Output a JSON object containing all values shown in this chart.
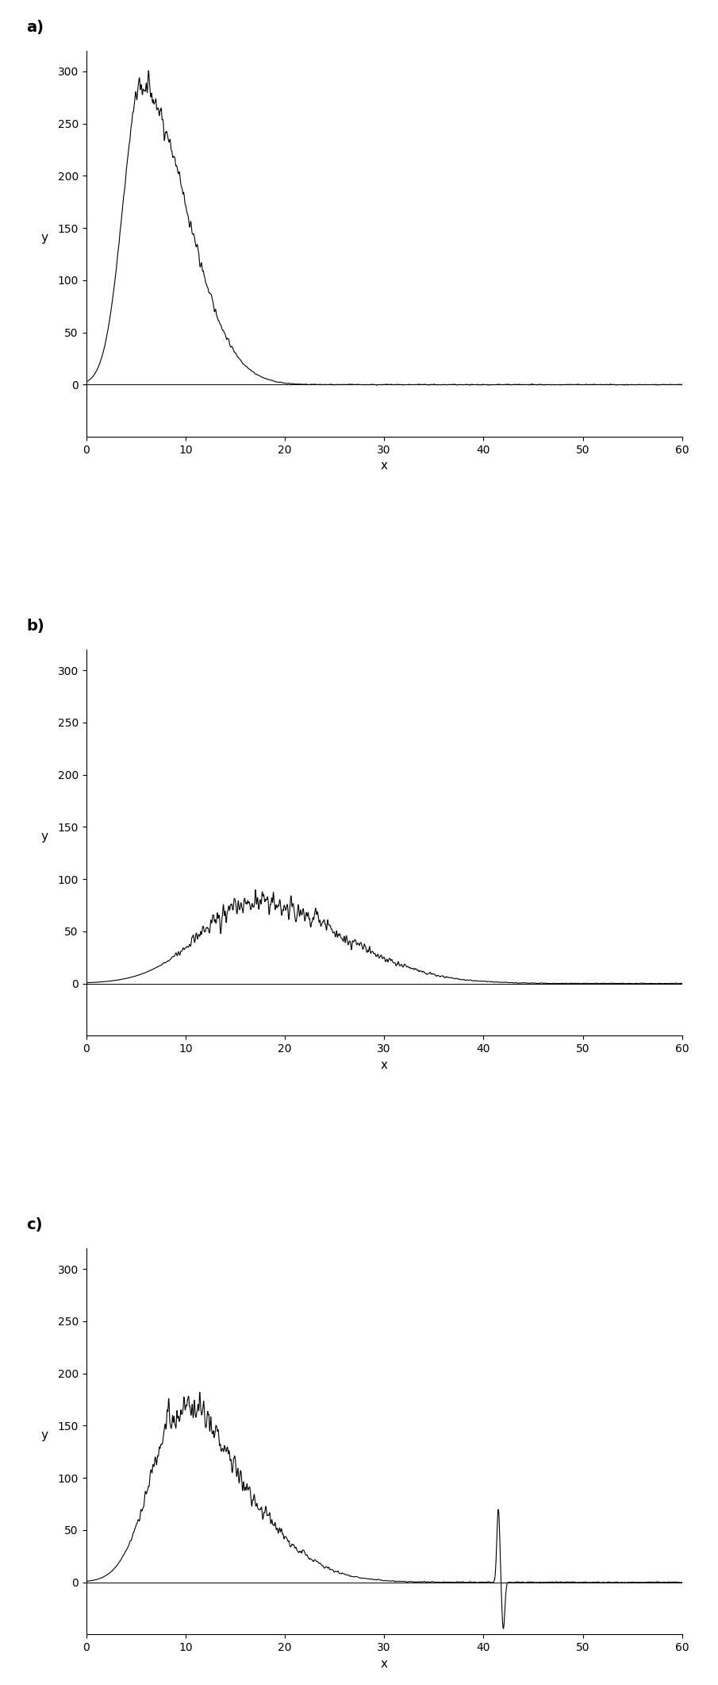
{
  "fig_width": 9.05,
  "fig_height": 21.22,
  "dpi": 100,
  "background_color": "#ffffff",
  "line_color": "#000000",
  "line_width": 0.8,
  "subplots": [
    {
      "label": "a)",
      "xlim": [
        0,
        60
      ],
      "ylim": [
        -50,
        320
      ],
      "xticks": [
        0,
        10,
        20,
        30,
        40,
        50,
        60
      ],
      "yticks": [
        0,
        50,
        100,
        150,
        200,
        250,
        300
      ],
      "xlabel": "x",
      "ylabel": "y",
      "peak_x": 5.5,
      "peak_y": 285,
      "rise_sigma": 1.8,
      "decay_sigma": 4.5,
      "noise_amplitude": 5.0,
      "noise_seed": 42,
      "noise_start_x": 2.0
    },
    {
      "label": "b)",
      "xlim": [
        0,
        60
      ],
      "ylim": [
        -50,
        320
      ],
      "xticks": [
        0,
        10,
        20,
        30,
        40,
        50,
        60
      ],
      "yticks": [
        0,
        50,
        100,
        150,
        200,
        250,
        300
      ],
      "xlabel": "x",
      "ylabel": "y",
      "peak_x": 17.0,
      "peak_y": 78,
      "rise_sigma": 5.5,
      "decay_sigma": 8.5,
      "noise_amplitude": 4.5,
      "noise_seed": 77,
      "noise_start_x": 7.0
    },
    {
      "label": "c)",
      "xlim": [
        0,
        60
      ],
      "ylim": [
        -50,
        320
      ],
      "xticks": [
        0,
        10,
        20,
        30,
        40,
        50,
        60
      ],
      "yticks": [
        0,
        50,
        100,
        150,
        200,
        250,
        300
      ],
      "xlabel": "x",
      "ylabel": "y",
      "peak_x": 9.0,
      "peak_y": 148,
      "rise_sigma": 2.8,
      "decay_sigma": 7.0,
      "shoulder_x": 11.5,
      "shoulder_y": 25,
      "shoulder_sigma": 2.0,
      "noise_amplitude": 6.0,
      "noise_seed": 99,
      "noise_start_x": 3.0,
      "spike_x": 41.5,
      "spike_y": 70,
      "spike_neg_y": -45
    }
  ]
}
